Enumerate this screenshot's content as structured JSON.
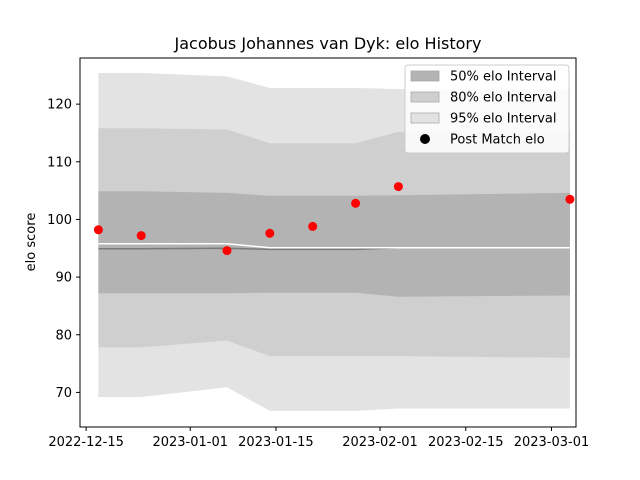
{
  "chart_data": {
    "type": "area",
    "title": "Jacobus Johannes van Dyk: elo History",
    "xlabel": "",
    "ylabel": "elo score",
    "xlim": [
      "2022-12-14",
      "2023-03-05"
    ],
    "ylim": [
      64,
      128
    ],
    "x_ticks": [
      "2022-12-15",
      "2023-01-01",
      "2023-01-15",
      "2023-02-01",
      "2023-02-15",
      "2023-03-01"
    ],
    "y_ticks": [
      70,
      80,
      90,
      100,
      110,
      120
    ],
    "grid": false,
    "legend_position": "top-right",
    "band_dates": [
      "2022-12-17",
      "2022-12-24",
      "2023-01-07",
      "2023-01-14",
      "2023-01-21",
      "2023-01-28",
      "2023-02-04",
      "2023-03-04"
    ],
    "series": [
      {
        "name": "95% elo Interval",
        "role": "band",
        "color": "#e3e3e3",
        "lower": [
          69.2,
          69.2,
          70.9,
          66.8,
          66.8,
          66.8,
          67.2,
          67.2
        ],
        "upper": [
          125.4,
          125.4,
          124.8,
          122.8,
          122.8,
          122.8,
          122.6,
          122.6
        ]
      },
      {
        "name": "80% elo Interval",
        "role": "band",
        "color": "#cfcfcf",
        "lower": [
          77.8,
          77.8,
          79.0,
          76.3,
          76.3,
          76.3,
          76.3,
          76.0
        ],
        "upper": [
          115.8,
          115.8,
          115.6,
          113.2,
          113.2,
          113.2,
          115.2,
          115.2
        ]
      },
      {
        "name": "50% elo Interval",
        "role": "band",
        "color": "#b3b3b3",
        "lower": [
          87.2,
          87.2,
          87.2,
          87.3,
          87.3,
          87.3,
          86.6,
          86.8
        ],
        "upper": [
          104.9,
          104.9,
          104.6,
          104.1,
          104.1,
          104.1,
          104.2,
          104.6
        ]
      },
      {
        "name": "",
        "role": "mean",
        "color": "#7a7a7a",
        "values": [
          94.9,
          94.9,
          95.0,
          94.8,
          94.8,
          94.8,
          95.1,
          95.1
        ]
      },
      {
        "name": "",
        "role": "rating",
        "color": "#ffffff",
        "values": [
          95.8,
          95.8,
          95.8,
          95.1,
          95.1,
          95.1,
          95.1,
          95.1
        ]
      },
      {
        "name": "Post Match elo",
        "role": "points",
        "color": "#ff0000",
        "x": [
          "2022-12-17",
          "2022-12-24",
          "2023-01-07",
          "2023-01-14",
          "2023-01-21",
          "2023-01-28",
          "2023-02-04",
          "2023-03-04"
        ],
        "values": [
          98.2,
          97.2,
          94.6,
          97.6,
          98.8,
          102.8,
          105.7,
          103.5
        ]
      }
    ],
    "legend": [
      {
        "label": "50% elo Interval",
        "color": "#b3b3b3",
        "marker": "patch"
      },
      {
        "label": "80% elo Interval",
        "color": "#cfcfcf",
        "marker": "patch"
      },
      {
        "label": "95% elo Interval",
        "color": "#e3e3e3",
        "marker": "patch"
      },
      {
        "label": "Post Match elo",
        "color": "#000000",
        "marker": "dot"
      }
    ]
  }
}
